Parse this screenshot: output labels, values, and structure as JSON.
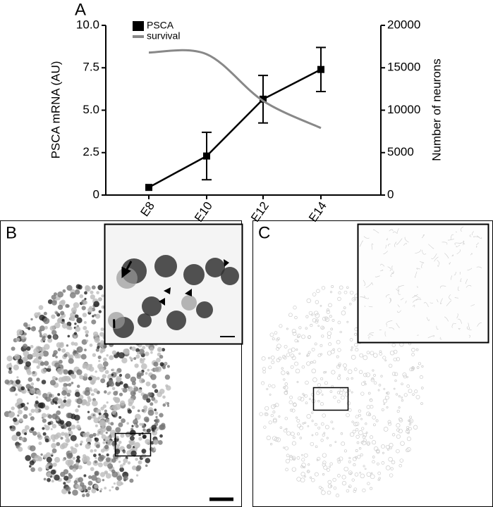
{
  "chart_data": {
    "type": "line",
    "panel_label": "A",
    "categories": [
      "E8",
      "E10",
      "E12",
      "E14"
    ],
    "series": [
      {
        "name": "PSCA",
        "color": "#000000",
        "values": [
          0.45,
          2.3,
          5.65,
          7.4
        ],
        "errors": [
          null,
          1.4,
          1.4,
          1.3
        ]
      },
      {
        "name": "survival",
        "color": "#888888",
        "axis": "y2",
        "values": [
          16800,
          16600,
          11100,
          7900
        ]
      }
    ],
    "ylabel": "PSCA mRNA (AU)",
    "y2label": "Number of neurons",
    "ylim": [
      0,
      10
    ],
    "yticks": [
      0,
      2.5,
      {
        "value": 5,
        "label": "5.0"
      },
      7.5,
      {
        "value": 10,
        "label": "10.0"
      }
    ],
    "y2lim": [
      0,
      20000
    ],
    "y2ticks": [
      0,
      5000,
      10000,
      15000,
      20000
    ],
    "legend": "upper left",
    "grid": false
  },
  "panels": [
    {
      "label": "B"
    },
    {
      "label": "C"
    }
  ]
}
